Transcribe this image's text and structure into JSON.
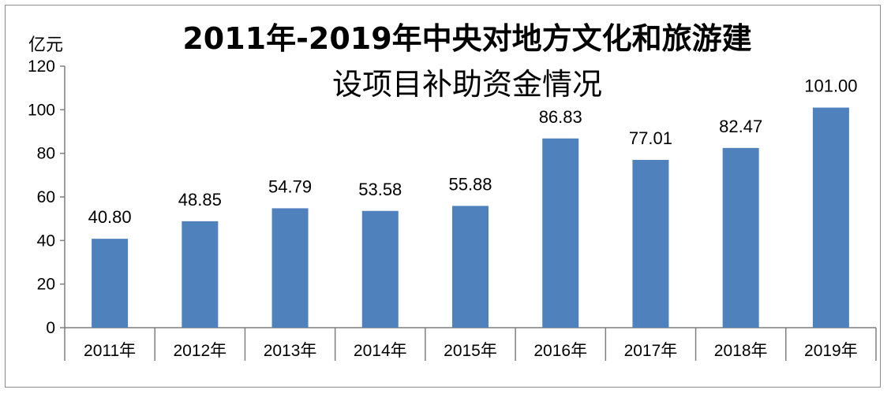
{
  "chart_data": {
    "type": "bar",
    "title_line1": "2011年-2019年中央对地方文化和旅游建",
    "title_line2": "设项目补助资金情况",
    "ylabel": "亿元",
    "xlabel": "",
    "ylim": [
      0,
      120
    ],
    "yticks": [
      0,
      20,
      40,
      60,
      80,
      100,
      120
    ],
    "categories": [
      "2011年",
      "2012年",
      "2013年",
      "2014年",
      "2015年",
      "2016年",
      "2017年",
      "2018年",
      "2019年"
    ],
    "values": [
      40.8,
      48.85,
      54.79,
      53.58,
      55.88,
      86.83,
      77.01,
      82.47,
      101.0
    ],
    "data_labels": [
      "40.80",
      "48.85",
      "54.79",
      "53.58",
      "55.88",
      "86.83",
      "77.01",
      "82.47",
      "101.00"
    ],
    "bar_color": "#4F81BD",
    "grid": false,
    "legend": "none"
  }
}
